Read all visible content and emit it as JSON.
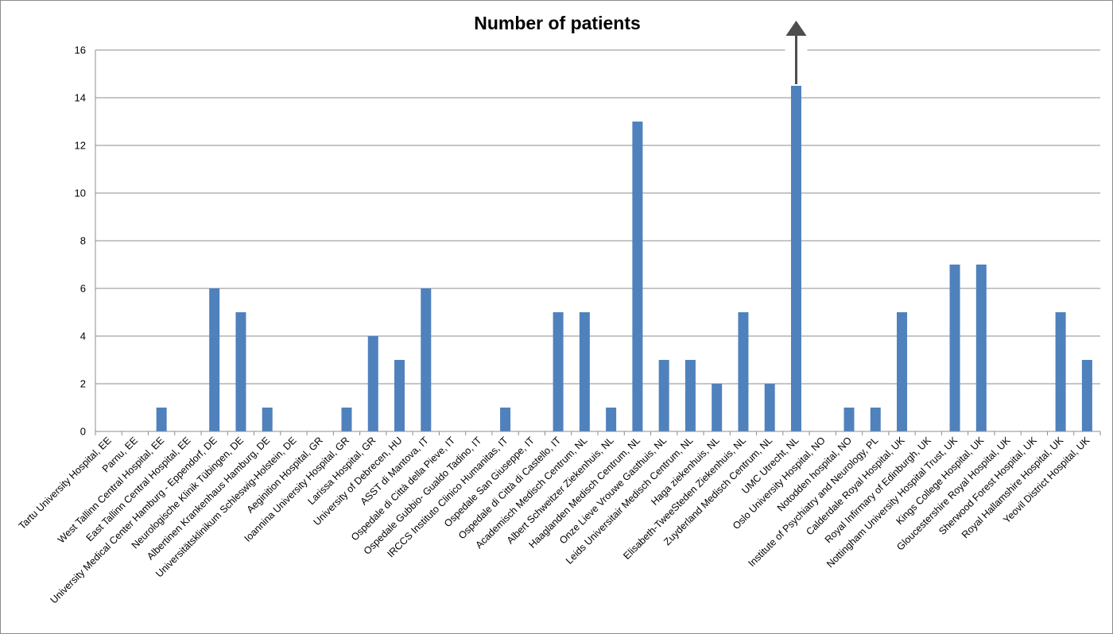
{
  "chart_data": {
    "type": "bar",
    "title": "Number of patients",
    "xlabel": "",
    "ylabel": "",
    "ylim": [
      0,
      16
    ],
    "yticks": [
      0,
      2,
      4,
      6,
      8,
      10,
      12,
      14,
      16
    ],
    "grid": true,
    "legend": "none",
    "bar_color": "#4f81bd",
    "annotation": "upward-arrow-above-tallest-bar",
    "categories": [
      "Tartu University Hospital, EE",
      "Parnu, EE",
      "West Tallinn Central Hospital, EE",
      "East Tallinn Central Hospital, EE",
      "University Medical Center Hamburg - Eppendorf, DE",
      "Neurologische Klinik Tübingen, DE",
      "Albertinen Krankenhaus Hamburg, DE",
      "Universitätsklinikum Schleswig-Holstein, DE",
      "Aeginition Hospital, GR",
      "Ioannina University Hospital, GR",
      "Larissa Hospital, GR",
      "University of Debrecen, HU",
      "ASST di Mantova, IT",
      "Ospedale di Città della Pieve, IT",
      "Ospedale Gubbio- Gualdo Tadino, IT",
      "IRCCS Instituto Clinico Humanitas, IT",
      "Ospedale San Giuseppe, IT",
      "Ospedale di Città di Castello, IT",
      "Academisch Medisch Centrum, NL",
      "Albert Schweitzer Ziekenhuis, NL",
      "Haaglanden Medisch Centrum, NL",
      "Onze Lieve Vrouwe Gasthuis, NL",
      "Leids Universitair Medisch Centrum, NL",
      "Haga ziekenhuis, NL",
      "Elisabeth-TweeSteden Ziekenhuis, NL",
      "Zuyderland Medisch Centrum, NL",
      "UMC Utrecht, NL",
      "Oslo University Hospital, NO",
      "Notodden hospital, NO",
      "Institute of Psychiatry and Neurology, PL",
      "Calderdale Royal Hospital, UK",
      "Royal Infirmary of Edinburgh, UK",
      "Nottingham University Hospital Trust, UK",
      "Kings College Hospital, UK",
      "Gloucestershire Royal Hospital, UK",
      "Sherwood Forest Hospital, UK",
      "Royal Hallamshire Hospital, UK",
      "Yeovil District Hospital, UK"
    ],
    "values": [
      0,
      0,
      1,
      0,
      6,
      5,
      1,
      0,
      0,
      1,
      4,
      3,
      6,
      0,
      0,
      1,
      0,
      5,
      5,
      1,
      13,
      3,
      3,
      2,
      5,
      2,
      14.5,
      0,
      1,
      1,
      5,
      0,
      7,
      7,
      0,
      0,
      5,
      3
    ]
  }
}
